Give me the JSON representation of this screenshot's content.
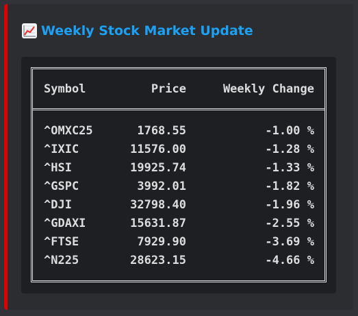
{
  "embed": {
    "accent_color": "#e00000",
    "title_icon": "chart-increasing-icon",
    "title": "Weekly Stock Market Update",
    "title_color": "#1ea1f2"
  },
  "table": {
    "headers": {
      "symbol": "Symbol",
      "price": "Price",
      "change": "Weekly Change"
    },
    "rows": [
      {
        "symbol": "^OMXC25",
        "price": "1768.55",
        "change": "-1.00 %"
      },
      {
        "symbol": "^IXIC",
        "price": "11576.00",
        "change": "-1.28 %"
      },
      {
        "symbol": "^HSI",
        "price": "19925.74",
        "change": "-1.33 %"
      },
      {
        "symbol": "^GSPC",
        "price": "3992.01",
        "change": "-1.82 %"
      },
      {
        "symbol": "^DJI",
        "price": "32798.40",
        "change": "-1.96 %"
      },
      {
        "symbol": "^GDAXI",
        "price": "15631.87",
        "change": "-2.55 %"
      },
      {
        "symbol": "^FTSE",
        "price": "7929.90",
        "change": "-3.69 %"
      },
      {
        "symbol": "^N225",
        "price": "28623.15",
        "change": "-4.66 %"
      }
    ]
  }
}
